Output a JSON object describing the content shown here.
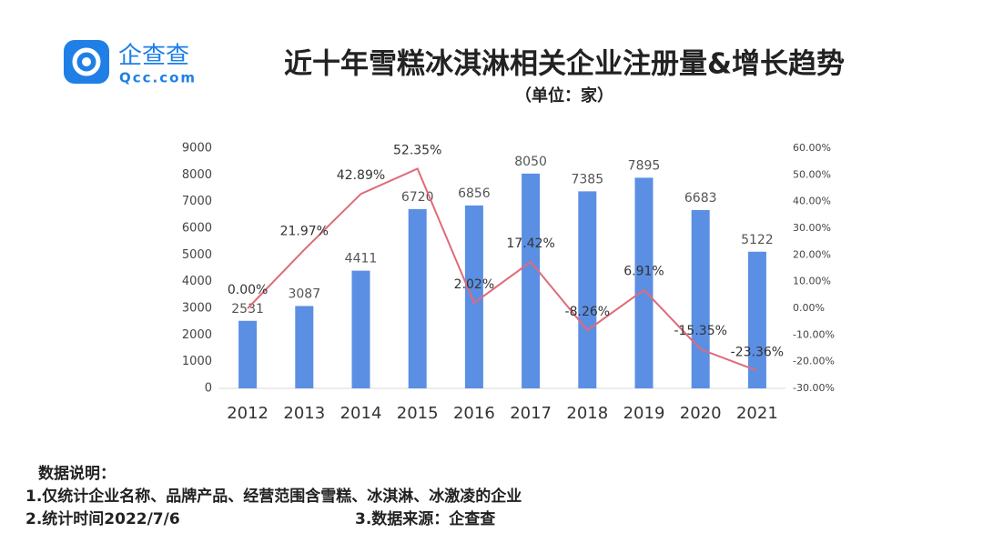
{
  "logo": {
    "name": "企查查",
    "site": "Qcc.com"
  },
  "chart_data": {
    "type": "combo",
    "title": "近十年雪糕冰淇淋相关企业注册量&增长趋势",
    "subtitle": "（单位：家）",
    "categories": [
      "2012",
      "2013",
      "2014",
      "2015",
      "2016",
      "2017",
      "2018",
      "2019",
      "2020",
      "2021"
    ],
    "series": [
      {
        "type": "bar",
        "color": "#5b8fe3",
        "values": [
          2531,
          3087,
          4411,
          6720,
          6856,
          8050,
          7385,
          7895,
          6683,
          5122
        ]
      },
      {
        "type": "line",
        "axis": "y2",
        "color": "#e06a7a",
        "values": [
          0.0,
          21.97,
          42.89,
          52.35,
          2.02,
          17.42,
          -8.26,
          6.91,
          -15.35,
          -23.36
        ],
        "value_labels": [
          "0.00%",
          "21.97%",
          "42.89%",
          "52.35%",
          "2.02%",
          "17.42%",
          "-8.26%",
          "6.91%",
          "-15.35%",
          "-23.36%"
        ]
      }
    ],
    "ylim": [
      0,
      9000
    ],
    "yticks": [
      0,
      1000,
      2000,
      3000,
      4000,
      5000,
      6000,
      7000,
      8000,
      9000
    ],
    "y2lim": [
      -30,
      60
    ],
    "y2ticks": [
      {
        "value": -30,
        "label": "-30.00%"
      },
      {
        "value": -20,
        "label": "-20.00%"
      },
      {
        "value": -10,
        "label": "-10.00%"
      },
      {
        "value": 0,
        "label": "0.00%"
      },
      {
        "value": 10,
        "label": "10.00%"
      },
      {
        "value": 20,
        "label": "20.00%"
      },
      {
        "value": 30,
        "label": "30.00%"
      },
      {
        "value": 40,
        "label": "40.00%"
      },
      {
        "value": 50,
        "label": "50.00%"
      },
      {
        "value": 60,
        "label": "60.00%"
      }
    ],
    "grid": false
  },
  "notes": {
    "heading": "数据说明：",
    "items": [
      "1.仅统计企业名称、品牌产品、经营范围含雪糕、冰淇淋、冰激凌的企业",
      "2.统计时间2022/7/6",
      "3.数据来源：企查查"
    ]
  }
}
